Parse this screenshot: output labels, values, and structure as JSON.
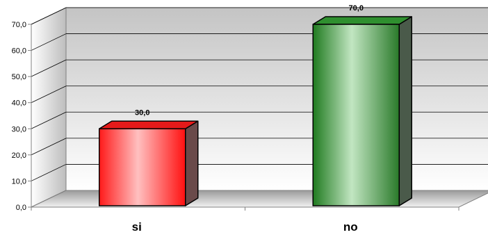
{
  "chart_data": {
    "type": "bar",
    "categories": [
      "si",
      "no"
    ],
    "values": [
      30.0,
      70.0
    ],
    "data_labels": [
      "30,0",
      "70,0"
    ],
    "y_ticks": [
      "0,0",
      "10,0",
      "20,0",
      "30,0",
      "40,0",
      "50,0",
      "60,0",
      "70,0"
    ],
    "ylim": [
      0,
      70
    ],
    "grid": true,
    "legend": "none",
    "three_d": true,
    "title": "",
    "xlabel": "",
    "ylabel": "",
    "colors": {
      "bar_si": "#ff2a2a",
      "bar_no": "#2e8b2e",
      "wall_top": "#c6c6c6",
      "wall_bottom": "#ffffff"
    }
  }
}
